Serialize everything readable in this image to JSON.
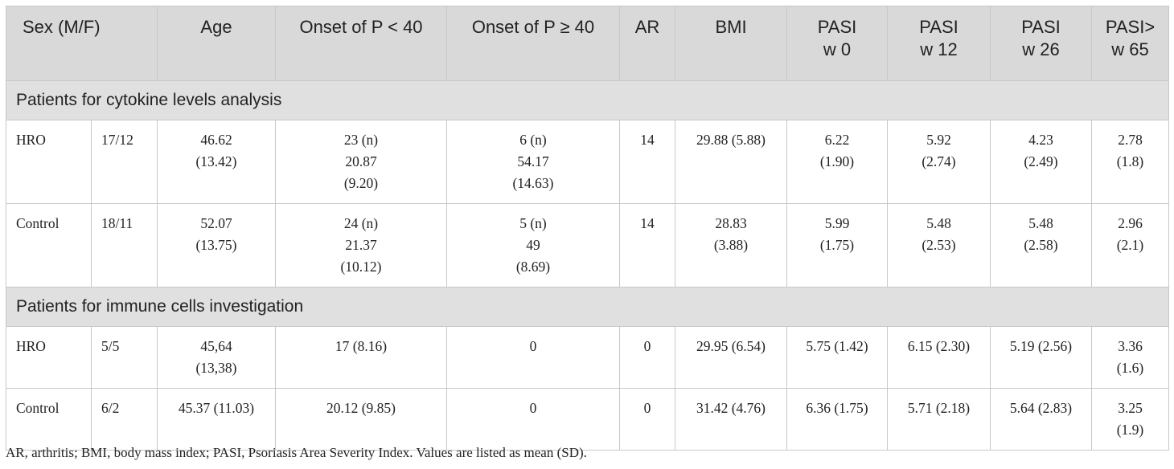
{
  "table": {
    "headers": [
      "Sex (M/F)",
      "Age",
      "Onset of P < 40",
      "Onset of P ≥ 40",
      "AR",
      "BMI",
      "PASI\nw 0",
      "PASI\nw 12",
      "PASI\nw 26",
      "PASI>\nw 65"
    ],
    "sections": [
      {
        "title": "Patients for cytokine levels analysis",
        "rows": [
          [
            "HRO",
            "17/12",
            "46.62\n(13.42)",
            "23 (n)\n20.87\n(9.20)",
            "6 (n)\n54.17\n(14.63)",
            "14",
            "29.88 (5.88)",
            "6.22\n(1.90)",
            "5.92\n(2.74)",
            "4.23\n(2.49)",
            "2.78\n(1.8)"
          ],
          [
            "Control",
            "18/11",
            "52.07\n(13.75)",
            "24 (n)\n21.37\n(10.12)",
            "5 (n)\n49\n(8.69)",
            "14",
            "28.83\n(3.88)",
            "5.99\n(1.75)",
            "5.48\n(2.53)",
            "5.48\n(2.58)",
            "2.96\n(2.1)"
          ]
        ]
      },
      {
        "title": "Patients for immune cells investigation",
        "rows": [
          [
            "HRO",
            "5/5",
            "45,64\n(13,38)",
            "17 (8.16)",
            "0",
            "0",
            "29.95 (6.54)",
            "5.75 (1.42)",
            "6.15 (2.30)",
            "5.19 (2.56)",
            "3.36\n(1.6)"
          ],
          [
            "Control",
            "6/2",
            "45.37 (11.03)",
            "20.12 (9.85)",
            "0",
            "0",
            "31.42 (4.76)",
            "6.36 (1.75)",
            "5.71 (2.18)",
            "5.64 (2.83)",
            "3.25\n(1.9)"
          ]
        ]
      }
    ]
  },
  "footnote": "AR, arthritis; BMI, body mass index; PASI, Psoriasis Area Severity Index. Values are listed as mean (SD)."
}
